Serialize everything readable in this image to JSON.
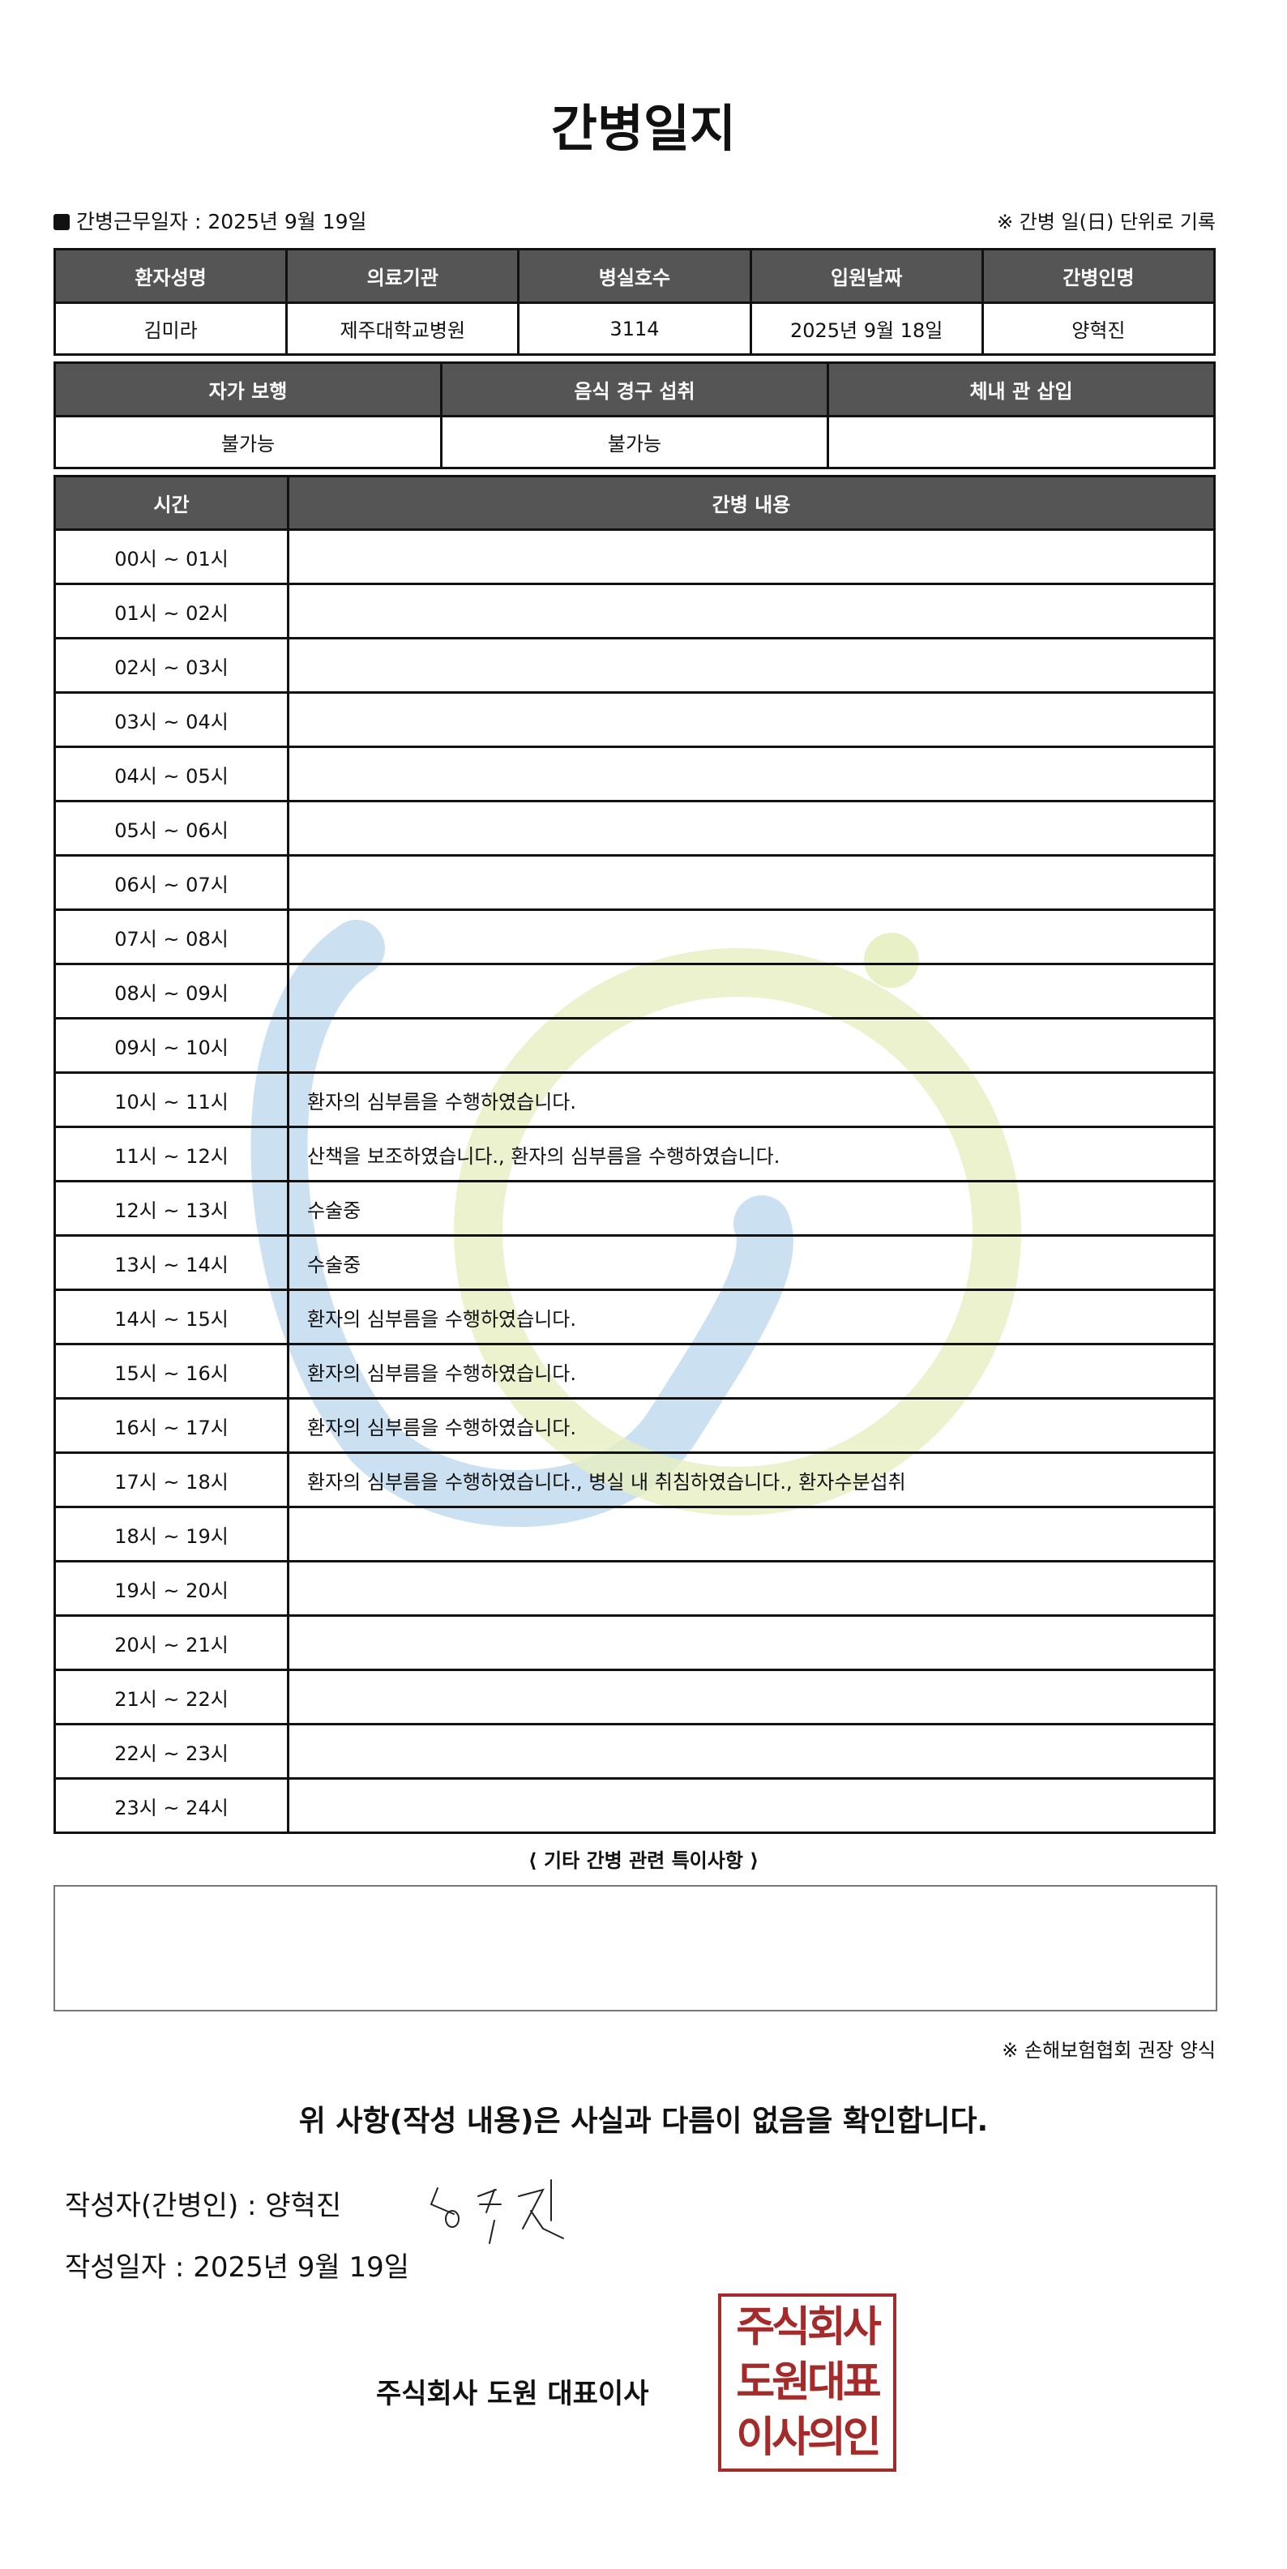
{
  "title": "간병일지",
  "work_date_label": "간병근무일자  :  2025년 9월 19일",
  "top_note": "※ 간병 일(日) 단위로 기록",
  "info": {
    "headers": [
      "환자성명",
      "의료기관",
      "병실호수",
      "입원날짜",
      "간병인명"
    ],
    "values": [
      "김미라",
      "제주대학교병원",
      "3114",
      "2025년 9월 18일",
      "양혁진"
    ]
  },
  "status": {
    "headers": [
      "자가 보행",
      "음식 경구 섭취",
      "체내 관 삽입"
    ],
    "values": [
      "불가능",
      "불가능",
      ""
    ]
  },
  "log": {
    "headers": [
      "시간",
      "간병 내용"
    ],
    "rows": [
      {
        "time": "00시 ~ 01시",
        "content": ""
      },
      {
        "time": "01시 ~ 02시",
        "content": ""
      },
      {
        "time": "02시 ~ 03시",
        "content": ""
      },
      {
        "time": "03시 ~ 04시",
        "content": ""
      },
      {
        "time": "04시 ~ 05시",
        "content": ""
      },
      {
        "time": "05시 ~ 06시",
        "content": ""
      },
      {
        "time": "06시 ~ 07시",
        "content": ""
      },
      {
        "time": "07시 ~ 08시",
        "content": ""
      },
      {
        "time": "08시 ~ 09시",
        "content": ""
      },
      {
        "time": "09시 ~ 10시",
        "content": ""
      },
      {
        "time": "10시 ~ 11시",
        "content": "환자의 심부름을 수행하였습니다."
      },
      {
        "time": "11시 ~ 12시",
        "content": "산책을 보조하였습니다., 환자의 심부름을 수행하였습니다."
      },
      {
        "time": "12시 ~ 13시",
        "content": "수술중"
      },
      {
        "time": "13시 ~ 14시",
        "content": "수술중"
      },
      {
        "time": "14시 ~ 15시",
        "content": "환자의 심부름을 수행하였습니다."
      },
      {
        "time": "15시 ~ 16시",
        "content": "환자의 심부름을 수행하였습니다."
      },
      {
        "time": "16시 ~ 17시",
        "content": "환자의 심부름을 수행하였습니다."
      },
      {
        "time": "17시 ~ 18시",
        "content": "환자의 심부름을 수행하였습니다., 병실 내 취침하였습니다., 환자수분섭취"
      },
      {
        "time": "18시 ~ 19시",
        "content": ""
      },
      {
        "time": "19시 ~ 20시",
        "content": ""
      },
      {
        "time": "20시 ~ 21시",
        "content": ""
      },
      {
        "time": "21시 ~ 22시",
        "content": ""
      },
      {
        "time": "22시 ~ 23시",
        "content": ""
      },
      {
        "time": "23시 ~ 24시",
        "content": ""
      }
    ]
  },
  "notes_title": "⟨ 기타 간병 관련 특이사항 ⟩",
  "notes_value": "",
  "form_note": "※ 손해보험협회 권장 양식",
  "confirm": "위 사항(작성 내용)은 사실과 다름이 없음을 확인합니다.",
  "writer_label": "작성자(간병인) :   양혁진",
  "write_date": "작성일자 :   2025년 9월 19일",
  "signature": "혁진",
  "company": "주식회사 도원   대표이사",
  "stamp": {
    "lines": [
      "주식회사",
      "도원대표",
      "이사의인"
    ],
    "color": "#a52a2a"
  },
  "colors": {
    "header_bg": "#555555",
    "watermark_blue": "#b9d7ec",
    "watermark_green": "#e6efc0"
  }
}
